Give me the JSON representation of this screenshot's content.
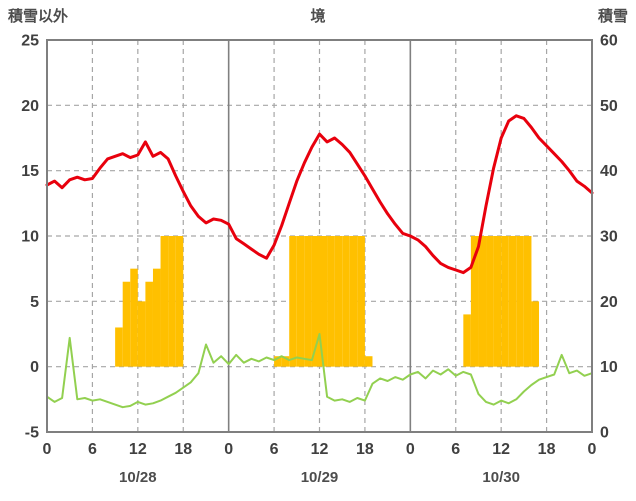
{
  "header": {
    "left_axis_title": "積雪以外",
    "chart_title": "境",
    "right_axis_title": "積雪"
  },
  "chart_data": {
    "type": "line",
    "title": "境",
    "left_axis": {
      "label": "積雪以外",
      "min": -5,
      "max": 25,
      "ticks": [
        25,
        20,
        15,
        10,
        5,
        0,
        -5
      ]
    },
    "right_axis": {
      "label": "積雪",
      "min": 0,
      "max": 60,
      "ticks": [
        60,
        50,
        40,
        30,
        20,
        10,
        0
      ]
    },
    "x_axis": {
      "total_hours": 72,
      "hour_ticks": [
        0,
        6,
        12,
        18,
        24,
        30,
        36,
        42,
        48,
        54,
        60,
        66,
        72
      ],
      "hour_tick_labels": [
        "0",
        "6",
        "12",
        "18",
        "0",
        "6",
        "12",
        "18",
        "0",
        "6",
        "12",
        "18",
        "0"
      ],
      "day_labels": [
        "10/28",
        "10/29",
        "10/30"
      ],
      "day_label_centers": [
        12,
        36,
        60
      ]
    },
    "series": [
      {
        "name": "red-line",
        "color": "#e8000d",
        "width": 3,
        "axis": "left",
        "values": [
          13.9,
          14.2,
          13.7,
          14.3,
          14.5,
          14.3,
          14.4,
          15.2,
          15.9,
          16.1,
          16.3,
          16.0,
          16.2,
          17.2,
          16.1,
          16.4,
          15.9,
          14.6,
          13.4,
          12.3,
          11.5,
          11.0,
          11.3,
          11.2,
          10.9,
          9.8,
          9.4,
          9.0,
          8.6,
          8.3,
          9.3,
          10.8,
          12.5,
          14.2,
          15.6,
          16.8,
          17.8,
          17.2,
          17.5,
          17.0,
          16.4,
          15.5,
          14.6,
          13.6,
          12.6,
          11.7,
          10.9,
          10.2,
          10.0,
          9.7,
          9.2,
          8.5,
          7.9,
          7.6,
          7.4,
          7.2,
          7.6,
          9.2,
          12.3,
          15.2,
          17.5,
          18.8,
          19.2,
          19.0,
          18.3,
          17.5,
          16.9,
          16.3,
          15.7,
          15.0,
          14.2,
          13.8,
          13.3
        ]
      },
      {
        "name": "green-line",
        "color": "#92d050",
        "width": 2,
        "axis": "left",
        "values": [
          -2.3,
          -2.7,
          -2.4,
          2.2,
          -2.5,
          -2.4,
          -2.6,
          -2.5,
          -2.7,
          -2.9,
          -3.1,
          -3.0,
          -2.7,
          -2.9,
          -2.8,
          -2.6,
          -2.3,
          -2.0,
          -1.6,
          -1.2,
          -0.5,
          1.7,
          0.3,
          0.8,
          0.2,
          0.9,
          0.3,
          0.6,
          0.4,
          0.7,
          0.5,
          0.8,
          0.5,
          0.7,
          0.6,
          0.5,
          2.5,
          -2.3,
          -2.6,
          -2.5,
          -2.7,
          -2.4,
          -2.6,
          -1.3,
          -0.9,
          -1.1,
          -0.8,
          -1.0,
          -0.6,
          -0.4,
          -0.9,
          -0.3,
          -0.6,
          -0.2,
          -0.7,
          -0.4,
          -0.6,
          -2.1,
          -2.7,
          -2.9,
          -2.6,
          -2.8,
          -2.5,
          -1.9,
          -1.4,
          -1.0,
          -0.8,
          -0.6,
          0.9,
          -0.5,
          -0.3,
          -0.7,
          -0.5
        ]
      }
    ],
    "bars": {
      "name": "orange-bars",
      "color": "#ffc000",
      "axis": "left",
      "baseline": 0,
      "values": [
        0,
        0,
        0,
        0,
        0,
        0,
        0,
        0,
        0,
        3.0,
        6.5,
        7.5,
        5.0,
        6.5,
        7.5,
        10,
        10,
        10,
        0,
        0,
        0,
        0,
        0,
        0,
        0,
        0,
        0,
        0,
        0,
        0,
        0.8,
        0.8,
        10,
        10,
        10,
        10,
        10,
        10,
        10,
        10,
        10,
        10,
        0.8,
        0,
        0,
        0,
        0,
        0,
        0,
        0,
        0,
        0,
        0,
        0,
        0,
        4.0,
        10,
        10,
        10,
        10,
        10,
        10,
        10,
        10,
        5.0,
        0,
        0,
        0,
        0,
        0,
        0,
        0
      ]
    },
    "colors": {
      "grid_dashed": "#a6a6a6",
      "grid_solid": "#808080",
      "border": "#7f7f7f",
      "tick_text": "#404040",
      "day_text": "#4d4d4d"
    }
  }
}
